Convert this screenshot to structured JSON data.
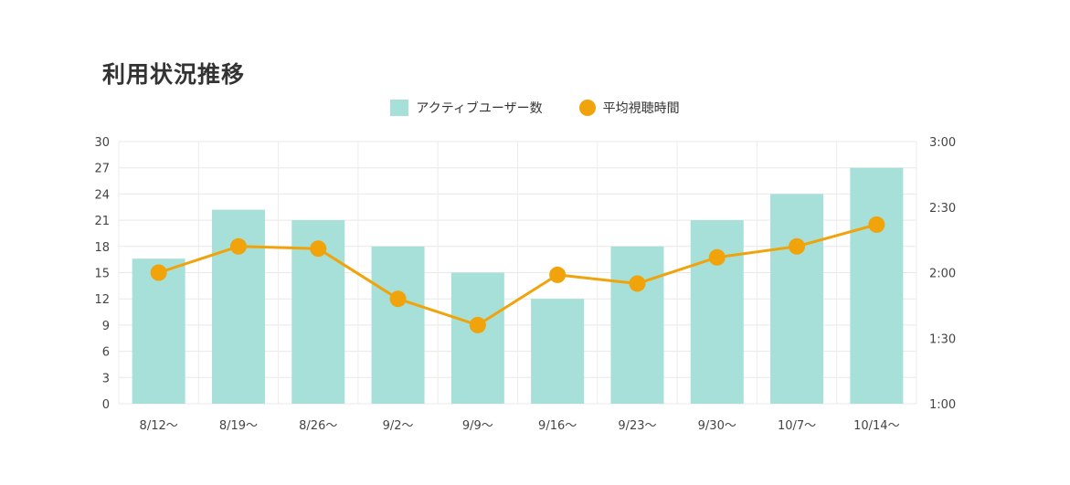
{
  "chart_data": {
    "type": "bar+line",
    "title": "利用状況推移",
    "categories": [
      "8/12〜",
      "8/19〜",
      "8/26〜",
      "9/2〜",
      "9/9〜",
      "9/16〜",
      "9/23〜",
      "9/30〜",
      "10/7〜",
      "10/14〜"
    ],
    "series": [
      {
        "name": "アクティブユーザー数",
        "type": "bar",
        "axis": "left",
        "color": "#a6e0d8",
        "values": [
          16.6,
          22.2,
          21,
          18,
          15,
          12,
          18,
          21,
          24,
          27
        ]
      },
      {
        "name": "平均視聴時間",
        "type": "line",
        "axis": "right",
        "color": "#f0a30a",
        "unit": "minutes",
        "values": [
          120,
          132,
          131,
          108,
          96,
          119,
          115,
          127,
          132,
          142
        ]
      }
    ],
    "left_axis": {
      "ylim": [
        0,
        30
      ],
      "ticks": [
        "0",
        "3",
        "6",
        "9",
        "12",
        "15",
        "18",
        "21",
        "24",
        "27",
        "30"
      ]
    },
    "right_axis": {
      "ylim_minutes": [
        60,
        180
      ],
      "ticks": [
        "1:00",
        "1:30",
        "2:00",
        "2:30",
        "3:00"
      ]
    },
    "legend_position": "top-center",
    "grid": true
  }
}
